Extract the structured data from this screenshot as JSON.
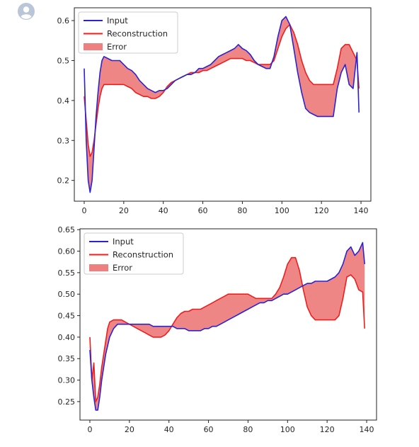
{
  "avatar_icon": "user-avatar-icon",
  "colors": {
    "input": "#2a22d6",
    "reconstruction": "#ee1e1e",
    "error": "#ee7f7f"
  },
  "chart_data": [
    {
      "type": "line",
      "title": "",
      "xlabel": "",
      "ylabel": "",
      "xlim": [
        -5,
        145
      ],
      "ylim": [
        0.148,
        0.632
      ],
      "xticks": [
        0,
        20,
        40,
        60,
        80,
        100,
        120,
        140
      ],
      "yticks": [
        0.2,
        0.3,
        0.4,
        0.5,
        0.6
      ],
      "ytick_labels": [
        "0.2",
        "0.3",
        "0.4",
        "0.5",
        "0.6"
      ],
      "legend": {
        "placement": "upper-left",
        "entries": [
          "Input",
          "Reconstruction",
          "Error"
        ]
      },
      "series": [
        {
          "name": "Input",
          "color": "#2a22d6",
          "x": [
            0,
            1,
            2,
            3,
            4,
            5,
            6,
            7,
            8,
            9,
            10,
            12,
            14,
            16,
            18,
            20,
            22,
            24,
            26,
            28,
            30,
            32,
            34,
            36,
            38,
            40,
            42,
            44,
            46,
            48,
            50,
            52,
            54,
            56,
            58,
            60,
            62,
            64,
            66,
            68,
            70,
            72,
            74,
            76,
            78,
            80,
            82,
            84,
            86,
            88,
            90,
            92,
            94,
            96,
            98,
            100,
            102,
            104,
            106,
            108,
            110,
            112,
            114,
            116,
            118,
            120,
            122,
            124,
            126,
            128,
            130,
            132,
            134,
            136,
            138,
            139
          ],
          "y": [
            0.48,
            0.3,
            0.2,
            0.17,
            0.2,
            0.28,
            0.36,
            0.42,
            0.47,
            0.5,
            0.51,
            0.505,
            0.5,
            0.5,
            0.5,
            0.49,
            0.48,
            0.475,
            0.465,
            0.45,
            0.44,
            0.43,
            0.425,
            0.42,
            0.425,
            0.425,
            0.43,
            0.44,
            0.45,
            0.455,
            0.46,
            0.465,
            0.465,
            0.47,
            0.48,
            0.48,
            0.485,
            0.49,
            0.5,
            0.51,
            0.515,
            0.52,
            0.525,
            0.53,
            0.54,
            0.53,
            0.525,
            0.515,
            0.5,
            0.49,
            0.485,
            0.48,
            0.48,
            0.51,
            0.56,
            0.6,
            0.61,
            0.59,
            0.53,
            0.47,
            0.42,
            0.38,
            0.37,
            0.365,
            0.36,
            0.36,
            0.36,
            0.36,
            0.36,
            0.43,
            0.47,
            0.49,
            0.44,
            0.43,
            0.52,
            0.37
          ]
        },
        {
          "name": "Reconstruction",
          "color": "#ee1e1e",
          "x": [
            0,
            1,
            2,
            3,
            4,
            5,
            6,
            7,
            8,
            9,
            10,
            12,
            14,
            16,
            18,
            20,
            22,
            24,
            26,
            28,
            30,
            32,
            34,
            36,
            38,
            40,
            42,
            44,
            46,
            48,
            50,
            52,
            54,
            56,
            58,
            60,
            62,
            64,
            66,
            68,
            70,
            72,
            74,
            76,
            78,
            80,
            82,
            84,
            86,
            88,
            90,
            92,
            94,
            96,
            98,
            100,
            102,
            104,
            106,
            108,
            110,
            112,
            114,
            116,
            118,
            120,
            122,
            124,
            126,
            128,
            130,
            132,
            134,
            136,
            138,
            139
          ],
          "y": [
            0.41,
            0.35,
            0.29,
            0.26,
            0.27,
            0.3,
            0.34,
            0.38,
            0.41,
            0.43,
            0.44,
            0.44,
            0.44,
            0.44,
            0.44,
            0.44,
            0.435,
            0.43,
            0.42,
            0.415,
            0.41,
            0.41,
            0.405,
            0.405,
            0.41,
            0.42,
            0.435,
            0.445,
            0.45,
            0.455,
            0.46,
            0.465,
            0.47,
            0.47,
            0.47,
            0.475,
            0.475,
            0.48,
            0.485,
            0.49,
            0.495,
            0.5,
            0.505,
            0.505,
            0.505,
            0.505,
            0.5,
            0.5,
            0.495,
            0.49,
            0.49,
            0.49,
            0.49,
            0.5,
            0.53,
            0.56,
            0.58,
            0.59,
            0.57,
            0.54,
            0.5,
            0.47,
            0.45,
            0.44,
            0.44,
            0.44,
            0.44,
            0.44,
            0.44,
            0.48,
            0.53,
            0.54,
            0.54,
            0.52,
            0.5,
            0.43
          ]
        }
      ]
    },
    {
      "type": "line",
      "title": "",
      "xlabel": "",
      "ylabel": "",
      "xlim": [
        -5,
        145
      ],
      "ylim": [
        0.207,
        0.652
      ],
      "xticks": [
        0,
        20,
        40,
        60,
        80,
        100,
        120,
        140
      ],
      "yticks": [
        0.25,
        0.3,
        0.35,
        0.4,
        0.45,
        0.5,
        0.55,
        0.6,
        0.65
      ],
      "ytick_labels": [
        "0.25",
        "0.30",
        "0.35",
        "0.40",
        "0.45",
        "0.50",
        "0.55",
        "0.60",
        "0.65"
      ],
      "legend": {
        "placement": "upper-left",
        "entries": [
          "Input",
          "Reconstruction",
          "Error"
        ]
      },
      "series": [
        {
          "name": "Input",
          "color": "#2a22d6",
          "x": [
            0,
            1,
            2,
            3,
            4,
            5,
            6,
            7,
            8,
            9,
            10,
            12,
            14,
            16,
            18,
            20,
            22,
            24,
            26,
            28,
            30,
            32,
            34,
            36,
            38,
            40,
            42,
            44,
            46,
            48,
            50,
            52,
            54,
            56,
            58,
            60,
            62,
            64,
            66,
            68,
            70,
            72,
            74,
            76,
            78,
            80,
            82,
            84,
            86,
            88,
            90,
            92,
            94,
            96,
            98,
            100,
            102,
            104,
            106,
            108,
            110,
            112,
            114,
            116,
            118,
            120,
            122,
            124,
            126,
            128,
            130,
            132,
            134,
            136,
            138,
            139
          ],
          "y": [
            0.37,
            0.3,
            0.26,
            0.23,
            0.23,
            0.26,
            0.3,
            0.33,
            0.36,
            0.38,
            0.4,
            0.42,
            0.43,
            0.43,
            0.43,
            0.43,
            0.43,
            0.43,
            0.43,
            0.43,
            0.43,
            0.425,
            0.425,
            0.425,
            0.425,
            0.425,
            0.425,
            0.42,
            0.42,
            0.42,
            0.415,
            0.415,
            0.415,
            0.415,
            0.42,
            0.42,
            0.425,
            0.425,
            0.43,
            0.435,
            0.44,
            0.445,
            0.45,
            0.455,
            0.46,
            0.465,
            0.47,
            0.475,
            0.48,
            0.48,
            0.485,
            0.485,
            0.49,
            0.495,
            0.5,
            0.5,
            0.505,
            0.51,
            0.515,
            0.52,
            0.525,
            0.525,
            0.53,
            0.53,
            0.53,
            0.53,
            0.535,
            0.54,
            0.55,
            0.57,
            0.6,
            0.61,
            0.59,
            0.6,
            0.62,
            0.57
          ]
        },
        {
          "name": "Reconstruction",
          "color": "#ee1e1e",
          "x": [
            0,
            1,
            2,
            3,
            4,
            5,
            6,
            7,
            8,
            9,
            10,
            12,
            14,
            16,
            18,
            20,
            22,
            24,
            26,
            28,
            30,
            32,
            34,
            36,
            38,
            40,
            42,
            44,
            46,
            48,
            50,
            52,
            54,
            56,
            58,
            60,
            62,
            64,
            66,
            68,
            70,
            72,
            74,
            76,
            78,
            80,
            82,
            84,
            86,
            88,
            90,
            92,
            94,
            96,
            98,
            100,
            102,
            104,
            106,
            108,
            110,
            112,
            114,
            116,
            118,
            120,
            122,
            124,
            126,
            128,
            130,
            132,
            134,
            136,
            138,
            139
          ],
          "y": [
            0.4,
            0.3,
            0.34,
            0.25,
            0.26,
            0.29,
            0.33,
            0.36,
            0.39,
            0.42,
            0.435,
            0.44,
            0.44,
            0.44,
            0.435,
            0.43,
            0.425,
            0.42,
            0.415,
            0.41,
            0.405,
            0.4,
            0.4,
            0.4,
            0.405,
            0.415,
            0.43,
            0.445,
            0.455,
            0.46,
            0.46,
            0.465,
            0.465,
            0.465,
            0.47,
            0.475,
            0.48,
            0.485,
            0.49,
            0.495,
            0.5,
            0.5,
            0.5,
            0.5,
            0.5,
            0.5,
            0.495,
            0.49,
            0.49,
            0.49,
            0.49,
            0.49,
            0.5,
            0.515,
            0.54,
            0.57,
            0.585,
            0.585,
            0.555,
            0.51,
            0.47,
            0.45,
            0.44,
            0.44,
            0.44,
            0.44,
            0.44,
            0.44,
            0.45,
            0.49,
            0.54,
            0.545,
            0.535,
            0.51,
            0.505,
            0.42
          ]
        }
      ]
    }
  ]
}
